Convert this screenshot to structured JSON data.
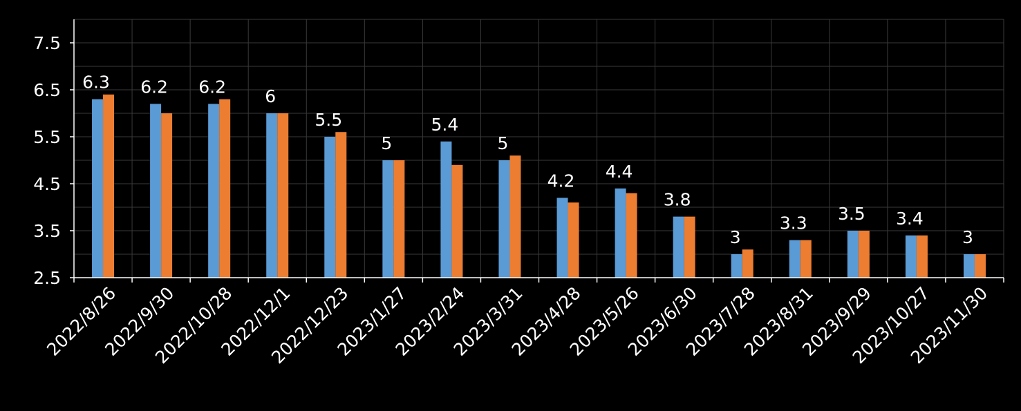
{
  "chart_data": {
    "type": "bar",
    "categories": [
      "2022/8/26",
      "2022/9/30",
      "2022/10/28",
      "2022/12/1",
      "2022/12/23",
      "2023/1/27",
      "2023/2/24",
      "2023/3/31",
      "2023/4/28",
      "2023/5/26",
      "2023/6/30",
      "2023/7/28",
      "2023/8/31",
      "2023/9/29",
      "2023/10/27",
      "2023/11/30"
    ],
    "series": [
      {
        "color": "#5b9bd5",
        "values": [
          6.3,
          6.2,
          6.2,
          6.0,
          5.5,
          5.0,
          5.4,
          5.0,
          4.2,
          4.4,
          3.8,
          3.0,
          3.3,
          3.5,
          3.4,
          3.0
        ],
        "labels": [
          "6.3",
          "6.2",
          "6.2",
          "6",
          "5.5",
          "5",
          "5.4",
          "5",
          "4.2",
          "4.4",
          "3.8",
          "3",
          "3.3",
          "3.5",
          "3.4",
          "3"
        ]
      },
      {
        "color": "#ed7d31",
        "values": [
          6.4,
          6.0,
          6.3,
          6.0,
          5.6,
          5.0,
          4.9,
          5.1,
          4.1,
          4.3,
          3.8,
          3.1,
          3.3,
          3.5,
          3.4,
          3.0
        ]
      }
    ],
    "yticks": [
      "2.5",
      "3.5",
      "4.5",
      "5.5",
      "6.5",
      "7.5"
    ],
    "ylim": [
      2.5,
      8.0
    ],
    "grid": true,
    "title": "",
    "xlabel": "",
    "ylabel": ""
  }
}
